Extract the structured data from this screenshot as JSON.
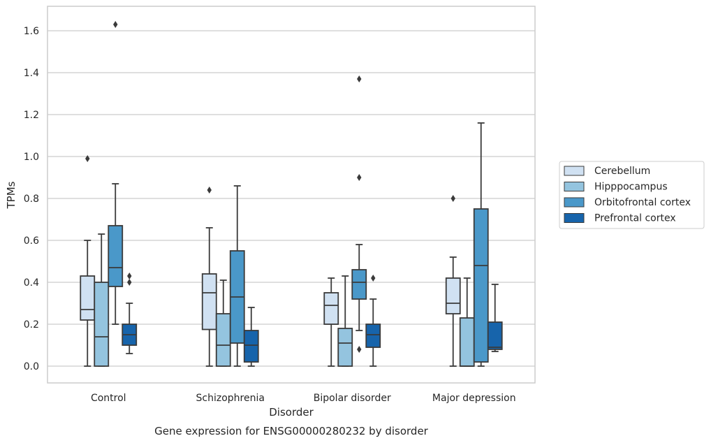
{
  "caption": "Gene expression for ENSG00000280232 by disorder",
  "chart_data": {
    "type": "box",
    "xlabel": "Disorder",
    "ylabel": "TPMs",
    "ylim": [
      -0.08,
      1.72
    ],
    "yticks": [
      "0.0",
      "0.2",
      "0.4",
      "0.6",
      "0.8",
      "1.0",
      "1.2",
      "1.4",
      "1.6"
    ],
    "grid": "horizontal",
    "legend_position": "right",
    "categories": [
      "Control",
      "Schizophrenia",
      "Bipolar disorder",
      "Major depression"
    ],
    "series": [
      {
        "name": "Cerebellum",
        "color": "#d0e1f2",
        "boxes": [
          {
            "whislo": 0.0,
            "q1": 0.22,
            "med": 0.27,
            "q3": 0.43,
            "whishi": 0.6,
            "fliers": [
              0.99
            ]
          },
          {
            "whislo": 0.0,
            "q1": 0.175,
            "med": 0.35,
            "q3": 0.44,
            "whishi": 0.66,
            "fliers": [
              0.84
            ]
          },
          {
            "whislo": 0.0,
            "q1": 0.2,
            "med": 0.29,
            "q3": 0.35,
            "whishi": 0.42,
            "fliers": []
          },
          {
            "whislo": 0.0,
            "q1": 0.25,
            "med": 0.3,
            "q3": 0.42,
            "whishi": 0.52,
            "fliers": [
              0.8
            ]
          }
        ]
      },
      {
        "name": "Hipppocampus",
        "color": "#94c4df",
        "boxes": [
          {
            "whislo": 0.0,
            "q1": 0.0,
            "med": 0.14,
            "q3": 0.4,
            "whishi": 0.63,
            "fliers": []
          },
          {
            "whislo": 0.0,
            "q1": 0.0,
            "med": 0.1,
            "q3": 0.25,
            "whishi": 0.41,
            "fliers": []
          },
          {
            "whislo": 0.0,
            "q1": 0.0,
            "med": 0.11,
            "q3": 0.18,
            "whishi": 0.43,
            "fliers": []
          },
          {
            "whislo": 0.0,
            "q1": 0.0,
            "med": 0.0,
            "q3": 0.23,
            "whishi": 0.42,
            "fliers": []
          }
        ]
      },
      {
        "name": "Orbitofrontal cortex",
        "color": "#4a98c9",
        "boxes": [
          {
            "whislo": 0.2,
            "q1": 0.38,
            "med": 0.47,
            "q3": 0.67,
            "whishi": 0.87,
            "fliers": [
              1.63
            ]
          },
          {
            "whislo": 0.0,
            "q1": 0.11,
            "med": 0.33,
            "q3": 0.55,
            "whishi": 0.86,
            "fliers": []
          },
          {
            "whislo": 0.17,
            "q1": 0.32,
            "med": 0.4,
            "q3": 0.46,
            "whishi": 0.58,
            "fliers": [
              0.9,
              1.37,
              0.08
            ]
          },
          {
            "whislo": 0.0,
            "q1": 0.02,
            "med": 0.48,
            "q3": 0.75,
            "whishi": 1.16,
            "fliers": []
          }
        ]
      },
      {
        "name": "Prefrontal cortex",
        "color": "#1764ab",
        "boxes": [
          {
            "whislo": 0.06,
            "q1": 0.1,
            "med": 0.15,
            "q3": 0.2,
            "whishi": 0.3,
            "fliers": [
              0.4,
              0.43
            ]
          },
          {
            "whislo": 0.0,
            "q1": 0.02,
            "med": 0.1,
            "q3": 0.17,
            "whishi": 0.28,
            "fliers": []
          },
          {
            "whislo": 0.0,
            "q1": 0.09,
            "med": 0.15,
            "q3": 0.2,
            "whishi": 0.32,
            "fliers": [
              0.42
            ]
          },
          {
            "whislo": 0.07,
            "q1": 0.08,
            "med": 0.09,
            "q3": 0.21,
            "whishi": 0.39,
            "fliers": []
          }
        ]
      }
    ]
  }
}
